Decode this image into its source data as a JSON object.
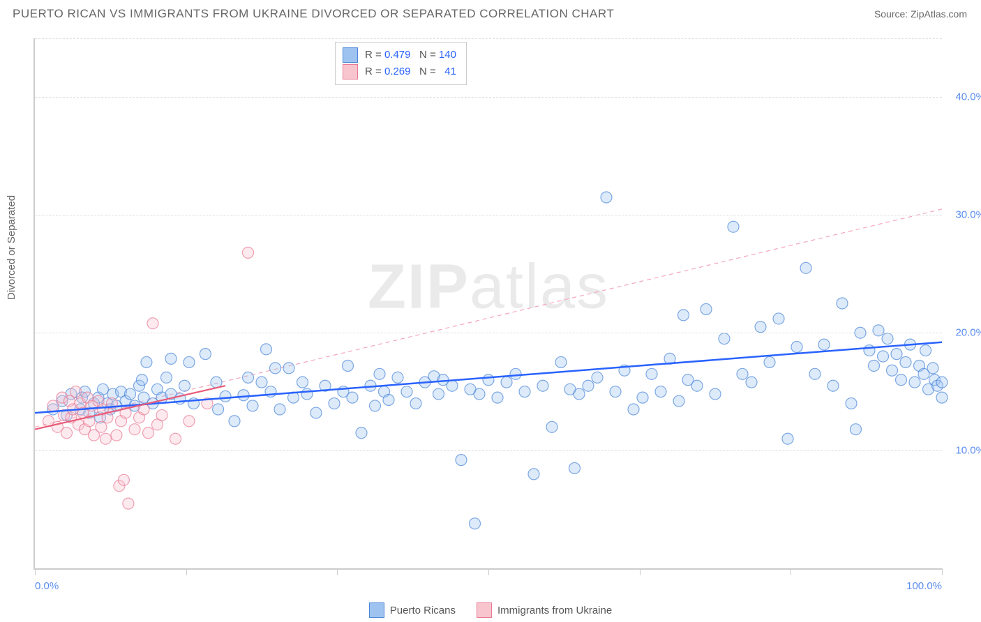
{
  "header": {
    "title": "PUERTO RICAN VS IMMIGRANTS FROM UKRAINE DIVORCED OR SEPARATED CORRELATION CHART",
    "source": "Source: ZipAtlas.com"
  },
  "ylabel": "Divorced or Separated",
  "watermark_bold": "ZIP",
  "watermark_light": "atlas",
  "chart": {
    "type": "scatter",
    "xlim": [
      0,
      100
    ],
    "ylim": [
      0,
      45
    ],
    "y_ticks": [
      10,
      20,
      30,
      40
    ],
    "y_tick_labels": [
      "10.0%",
      "20.0%",
      "30.0%",
      "40.0%"
    ],
    "x_ticks": [
      0,
      16.67,
      33.33,
      50,
      66.67,
      83.33,
      100
    ],
    "x_lim_labels": [
      "0.0%",
      "100.0%"
    ],
    "grid_color": "#dddddd",
    "background_color": "#ffffff",
    "axis_color": "#cccccc",
    "point_radius": 8,
    "series": [
      {
        "name": "Puerto Ricans",
        "fill": "#9ec3f0",
        "stroke": "#4a86d8",
        "r": 0.479,
        "n": 140,
        "trend": {
          "x1": 0,
          "y1": 13.2,
          "x2": 100,
          "y2": 19.2,
          "color": "#2962ff",
          "width": 2.5,
          "dash": "none"
        },
        "ext_trend": {
          "x1": 0,
          "y1": 12.0,
          "x2": 100,
          "y2": 30.5,
          "color": "#f4a6b8",
          "width": 1.2,
          "dash": "6,5"
        },
        "points": [
          [
            2,
            13.5
          ],
          [
            3,
            14.2
          ],
          [
            3.5,
            13.0
          ],
          [
            4,
            14.8
          ],
          [
            5,
            13.5
          ],
          [
            5.2,
            14.5
          ],
          [
            5.5,
            15.0
          ],
          [
            6,
            13.2
          ],
          [
            6.5,
            14.0
          ],
          [
            7,
            14.5
          ],
          [
            7.2,
            12.8
          ],
          [
            7.5,
            15.2
          ],
          [
            8,
            14.0
          ],
          [
            8.3,
            13.5
          ],
          [
            8.6,
            14.8
          ],
          [
            9,
            13.8
          ],
          [
            9.5,
            15.0
          ],
          [
            10,
            14.2
          ],
          [
            10.5,
            14.8
          ],
          [
            11,
            13.8
          ],
          [
            11.5,
            15.5
          ],
          [
            11.8,
            16.0
          ],
          [
            12,
            14.5
          ],
          [
            12.3,
            17.5
          ],
          [
            13,
            14.0
          ],
          [
            13.5,
            15.2
          ],
          [
            14,
            14.5
          ],
          [
            14.5,
            16.2
          ],
          [
            15,
            14.8
          ],
          [
            15,
            17.8
          ],
          [
            16,
            14.4
          ],
          [
            16.5,
            15.5
          ],
          [
            17,
            17.5
          ],
          [
            17.5,
            14.0
          ],
          [
            18.8,
            18.2
          ],
          [
            20,
            15.8
          ],
          [
            20.2,
            13.5
          ],
          [
            21,
            14.6
          ],
          [
            22,
            12.5
          ],
          [
            23,
            14.7
          ],
          [
            23.5,
            16.2
          ],
          [
            24,
            13.8
          ],
          [
            25,
            15.8
          ],
          [
            25.5,
            18.6
          ],
          [
            26,
            15.0
          ],
          [
            26.5,
            17.0
          ],
          [
            27,
            13.5
          ],
          [
            28,
            17.0
          ],
          [
            28.5,
            14.5
          ],
          [
            29.5,
            15.8
          ],
          [
            30,
            14.8
          ],
          [
            31,
            13.2
          ],
          [
            32,
            15.5
          ],
          [
            33,
            14.0
          ],
          [
            34,
            15.0
          ],
          [
            34.5,
            17.2
          ],
          [
            35,
            14.5
          ],
          [
            36,
            11.5
          ],
          [
            37,
            15.5
          ],
          [
            37.5,
            13.8
          ],
          [
            38,
            16.5
          ],
          [
            38.5,
            15.0
          ],
          [
            39,
            14.3
          ],
          [
            40,
            16.2
          ],
          [
            41,
            15.0
          ],
          [
            42,
            14.0
          ],
          [
            43,
            15.8
          ],
          [
            44,
            16.3
          ],
          [
            44.5,
            14.8
          ],
          [
            45,
            16.0
          ],
          [
            46,
            15.5
          ],
          [
            47,
            9.2
          ],
          [
            48,
            15.2
          ],
          [
            48.5,
            3.8
          ],
          [
            49,
            14.8
          ],
          [
            50,
            16.0
          ],
          [
            51,
            14.5
          ],
          [
            52,
            15.8
          ],
          [
            53,
            16.5
          ],
          [
            54,
            15.0
          ],
          [
            55,
            8.0
          ],
          [
            56,
            15.5
          ],
          [
            57,
            12.0
          ],
          [
            58,
            17.5
          ],
          [
            59,
            15.2
          ],
          [
            59.5,
            8.5
          ],
          [
            60,
            14.8
          ],
          [
            61,
            15.5
          ],
          [
            62,
            16.2
          ],
          [
            63,
            31.5
          ],
          [
            64,
            15.0
          ],
          [
            65,
            16.8
          ],
          [
            66,
            13.5
          ],
          [
            67,
            14.5
          ],
          [
            68,
            16.5
          ],
          [
            69,
            15.0
          ],
          [
            70,
            17.8
          ],
          [
            71,
            14.2
          ],
          [
            71.5,
            21.5
          ],
          [
            72,
            16.0
          ],
          [
            73,
            15.5
          ],
          [
            74,
            22.0
          ],
          [
            75,
            14.8
          ],
          [
            76,
            19.5
          ],
          [
            77,
            29.0
          ],
          [
            78,
            16.5
          ],
          [
            79,
            15.8
          ],
          [
            80,
            20.5
          ],
          [
            81,
            17.5
          ],
          [
            82,
            21.2
          ],
          [
            83,
            11.0
          ],
          [
            84,
            18.8
          ],
          [
            85,
            25.5
          ],
          [
            86,
            16.5
          ],
          [
            87,
            19.0
          ],
          [
            88,
            15.5
          ],
          [
            89,
            22.5
          ],
          [
            90,
            14.0
          ],
          [
            90.5,
            11.8
          ],
          [
            91,
            20.0
          ],
          [
            92,
            18.5
          ],
          [
            92.5,
            17.2
          ],
          [
            93,
            20.2
          ],
          [
            93.5,
            18.0
          ],
          [
            94,
            19.5
          ],
          [
            94.5,
            16.8
          ],
          [
            95,
            18.2
          ],
          [
            95.5,
            16.0
          ],
          [
            96,
            17.5
          ],
          [
            96.5,
            19.0
          ],
          [
            97,
            15.8
          ],
          [
            97.5,
            17.2
          ],
          [
            98,
            16.5
          ],
          [
            98.2,
            18.5
          ],
          [
            98.5,
            15.2
          ],
          [
            99,
            17.0
          ],
          [
            99.2,
            16.0
          ],
          [
            99.5,
            15.5
          ],
          [
            100,
            15.8
          ],
          [
            100,
            14.5
          ]
        ]
      },
      {
        "name": "Immigrants from Ukraine",
        "fill": "#f8c4ce",
        "stroke": "#e87a94",
        "r": 0.269,
        "n": 41,
        "trend": {
          "x1": 0,
          "y1": 11.8,
          "x2": 21,
          "y2": 15.5,
          "color": "#e85a78",
          "width": 2.2,
          "dash": "none"
        },
        "points": [
          [
            1.5,
            12.5
          ],
          [
            2,
            13.8
          ],
          [
            2.5,
            12.0
          ],
          [
            3,
            14.5
          ],
          [
            3.2,
            13.0
          ],
          [
            3.5,
            11.5
          ],
          [
            3.8,
            14.2
          ],
          [
            4,
            12.8
          ],
          [
            4.2,
            13.5
          ],
          [
            4.5,
            15.0
          ],
          [
            4.8,
            12.2
          ],
          [
            5,
            14.0
          ],
          [
            5.3,
            13.2
          ],
          [
            5.5,
            11.8
          ],
          [
            5.8,
            14.5
          ],
          [
            6,
            12.5
          ],
          [
            6.3,
            13.8
          ],
          [
            6.5,
            11.3
          ],
          [
            7,
            14.2
          ],
          [
            7.3,
            12.0
          ],
          [
            7.5,
            13.5
          ],
          [
            7.8,
            11.0
          ],
          [
            8,
            12.8
          ],
          [
            8.5,
            14.0
          ],
          [
            9,
            11.3
          ],
          [
            9.3,
            7.0
          ],
          [
            9.5,
            12.5
          ],
          [
            9.8,
            7.5
          ],
          [
            10,
            13.2
          ],
          [
            10.3,
            5.5
          ],
          [
            11,
            11.8
          ],
          [
            11.5,
            12.8
          ],
          [
            12,
            13.5
          ],
          [
            12.5,
            11.5
          ],
          [
            13,
            20.8
          ],
          [
            13.5,
            12.2
          ],
          [
            14,
            13.0
          ],
          [
            15.5,
            11.0
          ],
          [
            17,
            12.5
          ],
          [
            19,
            14.0
          ],
          [
            23.5,
            26.8
          ]
        ]
      }
    ]
  },
  "bottom_legend": [
    {
      "label": "Puerto Ricans",
      "fill": "#9ec3f0",
      "stroke": "#4a86d8"
    },
    {
      "label": "Immigrants from Ukraine",
      "fill": "#f8c4ce",
      "stroke": "#e87a94"
    }
  ]
}
